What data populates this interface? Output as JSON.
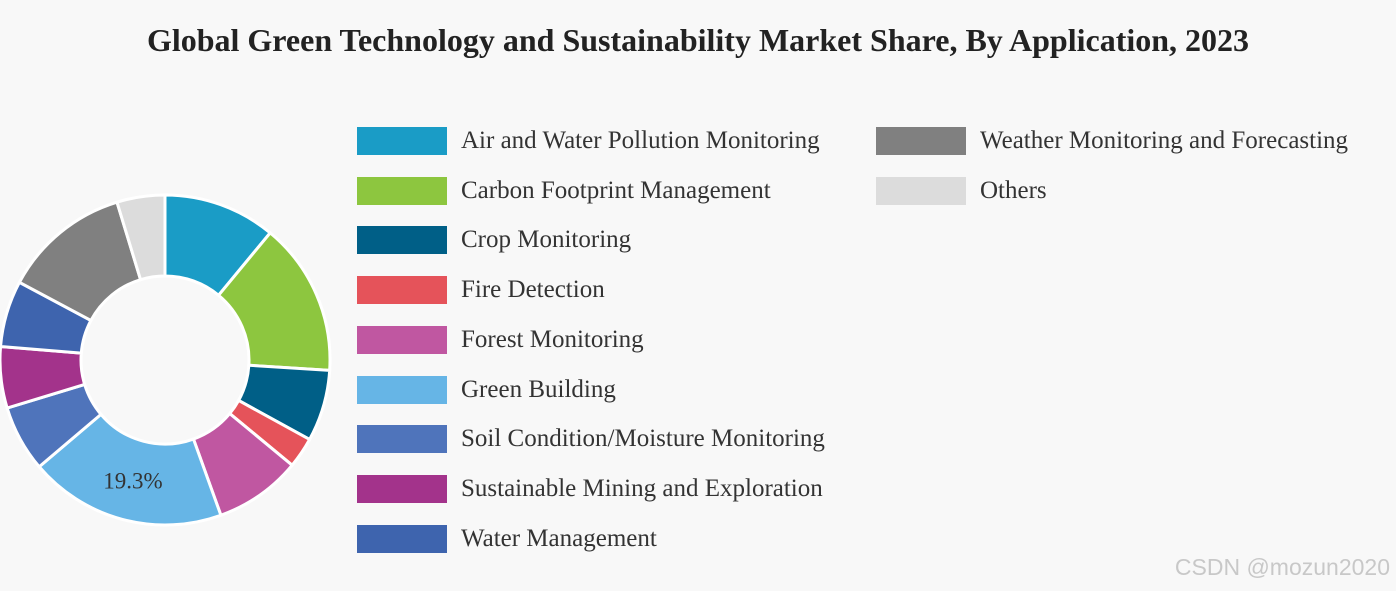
{
  "chart_data": {
    "type": "pie",
    "subtype": "donut",
    "title": "Global Green Technology and Sustainability Market Share, By Application, 2023",
    "categories": [
      "Air and Water Pollution Monitoring",
      "Carbon Footprint Management",
      "Crop Monitoring",
      "Fire Detection",
      "Forest Monitoring",
      "Green Building",
      "Soil Condition/Moisture Monitoring",
      "Sustainable Mining and Exploration",
      "Water Management",
      "Weather Monitoring and Forecasting",
      "Others"
    ],
    "values": [
      11.0,
      15.0,
      7.0,
      3.0,
      8.5,
      19.3,
      6.5,
      6.0,
      6.5,
      12.5,
      4.7
    ],
    "colors": [
      "#1a9cc6",
      "#8dc63f",
      "#005f87",
      "#e5535a",
      "#c057a1",
      "#66b5e6",
      "#4f74bb",
      "#a3338b",
      "#3e64ae",
      "#808080",
      "#dcdcdc"
    ],
    "data_labels": [
      {
        "category": "Green Building",
        "text": "19.3%"
      }
    ],
    "legend_position": "right"
  },
  "watermark": "CSDN @mozun2020"
}
